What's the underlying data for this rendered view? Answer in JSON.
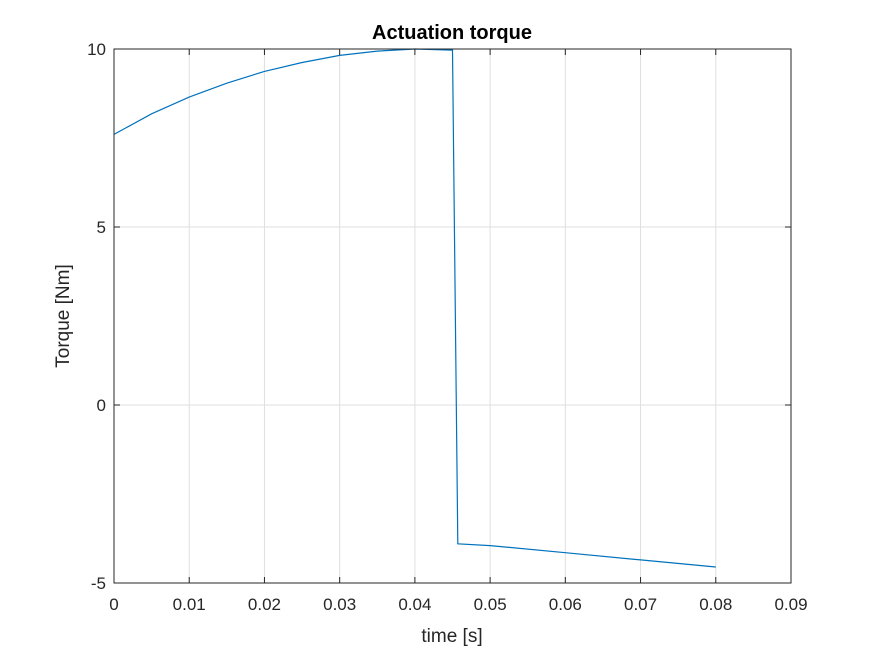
{
  "chart_data": {
    "type": "line",
    "title": "Actuation torque",
    "xlabel": "time [s]",
    "ylabel": "Torque [Nm]",
    "xlim": [
      0,
      0.09
    ],
    "ylim": [
      -5,
      10
    ],
    "xticks": [
      0,
      0.01,
      0.02,
      0.03,
      0.04,
      0.05,
      0.06,
      0.07,
      0.08,
      0.09
    ],
    "xtick_labels": [
      "0",
      "0.01",
      "0.02",
      "0.03",
      "0.04",
      "0.05",
      "0.06",
      "0.07",
      "0.08",
      "0.09"
    ],
    "yticks": [
      -5,
      0,
      5,
      10
    ],
    "ytick_labels": [
      "-5",
      "0",
      "5",
      "10"
    ],
    "grid": true,
    "series": [
      {
        "color": "#0072bd",
        "x": [
          0,
          0.005,
          0.01,
          0.015,
          0.02,
          0.025,
          0.03,
          0.035,
          0.04,
          0.045,
          0.0457,
          0.05,
          0.06,
          0.07,
          0.08
        ],
        "y": [
          7.6,
          8.18,
          8.65,
          9.04,
          9.37,
          9.62,
          9.82,
          9.94,
          10.0,
          9.97,
          -3.9,
          -3.95,
          -4.15,
          -4.35,
          -4.55
        ]
      }
    ]
  }
}
